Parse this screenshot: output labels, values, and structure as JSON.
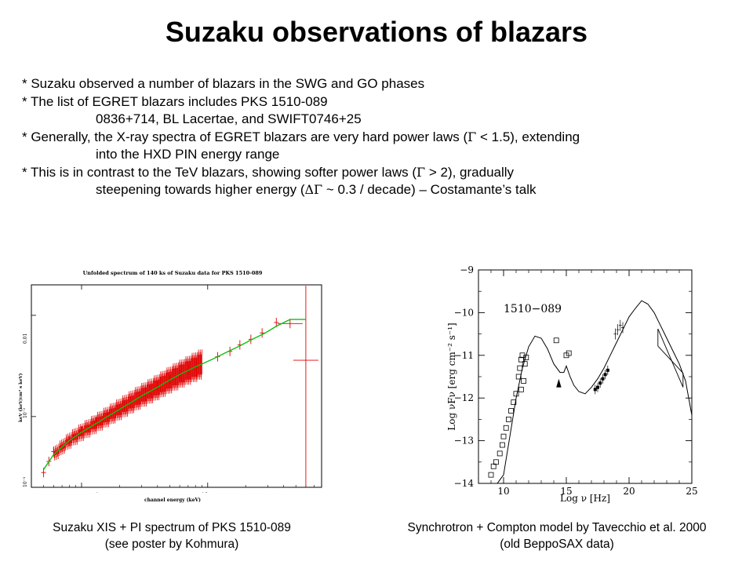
{
  "slide": {
    "title": "Suzaku observations of blazars",
    "bullets": [
      {
        "text": "* Suzaku observed a number of blazars in the SWG and GO phases",
        "indent": false
      },
      {
        "text": "* The list of EGRET blazars includes PKS 1510-089",
        "indent": false
      },
      {
        "text": "0836+714, BL Lacertae, and SWIFT0746+25",
        "indent": true
      },
      {
        "pre": "* Generally, the X-ray spectra of EGRET blazars are very hard power laws (",
        "sym": "Γ",
        "post": " < 1.5), extending",
        "indent": false
      },
      {
        "text": "into the HXD PIN energy range",
        "indent": true
      },
      {
        "pre": "* This is in contrast to the TeV blazars, showing softer power laws (",
        "sym": "Γ",
        "post": " > 2), gradually",
        "indent": false
      },
      {
        "pre": "steepening towards higher energy (",
        "sym": "ΔΓ",
        "post": " ~ 0.3 / decade) – Costamante’s talk",
        "indent": true
      }
    ],
    "captions": {
      "left_line1": "Suzaku XIS + PI spectrum of PKS 1510-089",
      "left_line2": "(see poster by Kohmura)",
      "right_line1": "Synchrotron + Compton model by Tavecchio et al. 2000",
      "right_line2": "(old BeppoSAX data)"
    }
  },
  "chart_data": [
    {
      "type": "scatter",
      "title": "Unfolded spectrum of 140 ks of Suzaku data for PKS 1510-089",
      "xlabel": "channel energy (keV)",
      "ylabel": "keV (keV/cm² s keV)",
      "xscale": "log",
      "yscale": "log",
      "x_tick_labels": [
        "1",
        "10"
      ],
      "y_tick_labels": [
        "10⁻³",
        "10⁻²",
        "0.01"
      ],
      "xlim": [
        0.4,
        80
      ],
      "ylim": [
        0.0002,
        0.02
      ],
      "colors": {
        "data": "#e00000",
        "model": "#10c010"
      },
      "model_x": [
        0.5,
        0.6,
        0.8,
        1,
        1.5,
        2,
        3,
        4,
        5,
        6,
        8,
        9,
        11,
        14,
        18,
        22,
        28,
        35,
        45,
        60
      ],
      "model_y": [
        0.0003,
        0.00042,
        0.00058,
        0.0007,
        0.00095,
        0.00118,
        0.0016,
        0.00195,
        0.0023,
        0.0026,
        0.0031,
        0.0033,
        0.0037,
        0.0043,
        0.005,
        0.0057,
        0.0066,
        0.0078,
        0.0091,
        0.0091
      ],
      "data_points": [
        {
          "x": 0.5,
          "y": 0.00028
        },
        {
          "x": 0.55,
          "y": 0.00036
        },
        {
          "x": 0.6,
          "y": 0.00045
        },
        {
          "x": 0.7,
          "y": 0.0005
        },
        {
          "x": 0.8,
          "y": 0.00057
        },
        {
          "x": 1.0,
          "y": 0.00072
        },
        {
          "x": 1.3,
          "y": 0.0009
        },
        {
          "x": 1.6,
          "y": 0.00105
        },
        {
          "x": 2.0,
          "y": 0.0012
        },
        {
          "x": 2.5,
          "y": 0.0014
        },
        {
          "x": 3.0,
          "y": 0.0016
        },
        {
          "x": 3.5,
          "y": 0.0018
        },
        {
          "x": 4.0,
          "y": 0.002
        },
        {
          "x": 5.0,
          "y": 0.0023
        },
        {
          "x": 6.0,
          "y": 0.0026
        },
        {
          "x": 7.0,
          "y": 0.0029
        },
        {
          "x": 8.0,
          "y": 0.0031
        },
        {
          "x": 12,
          "y": 0.0039
        },
        {
          "x": 15,
          "y": 0.0044
        },
        {
          "x": 18,
          "y": 0.0051
        },
        {
          "x": 22,
          "y": 0.0058
        },
        {
          "x": 27,
          "y": 0.0067
        },
        {
          "x": 35,
          "y": 0.0085
        },
        {
          "x": 45,
          "y": 0.0083
        },
        {
          "x": 60,
          "y": 0.0036
        }
      ]
    },
    {
      "type": "scatter",
      "title": "1510−089",
      "xlabel": "Log ν [Hz]",
      "ylabel": "Log νFν [erg cm⁻² s⁻¹]",
      "x_ticks": [
        10,
        15,
        20,
        25
      ],
      "y_ticks": [
        -9,
        -10,
        -11,
        -12,
        -13,
        -14
      ],
      "xlim": [
        8,
        25
      ],
      "ylim": [
        -14,
        -9
      ],
      "model_x": [
        9.5,
        10,
        10.5,
        11,
        11.5,
        12,
        12.5,
        13,
        13.5,
        14,
        14.5,
        14.8,
        15,
        15.3,
        15.6,
        16,
        16.5,
        17,
        17.5,
        18,
        18.5,
        19,
        19.5,
        20,
        20.5,
        21,
        21.5,
        22,
        22.5,
        23,
        23.5,
        24,
        24.5,
        25
      ],
      "model_y": [
        -14.2,
        -13.8,
        -12.9,
        -12.0,
        -11.3,
        -10.8,
        -10.55,
        -10.6,
        -10.85,
        -11.2,
        -11.4,
        -11.4,
        -11.25,
        -11.5,
        -11.7,
        -11.85,
        -11.9,
        -11.75,
        -11.55,
        -11.3,
        -11.0,
        -10.7,
        -10.4,
        -10.1,
        -9.9,
        -9.72,
        -9.8,
        -10.0,
        -10.3,
        -10.6,
        -10.9,
        -11.2,
        -11.6,
        -12.4
      ],
      "square_points": [
        {
          "x": 9.0,
          "y": -13.8
        },
        {
          "x": 9.2,
          "y": -13.6
        },
        {
          "x": 9.4,
          "y": -13.5
        },
        {
          "x": 9.7,
          "y": -13.3
        },
        {
          "x": 9.9,
          "y": -13.1
        },
        {
          "x": 10.0,
          "y": -12.9
        },
        {
          "x": 10.2,
          "y": -12.7
        },
        {
          "x": 10.4,
          "y": -12.5
        },
        {
          "x": 10.6,
          "y": -12.3
        },
        {
          "x": 10.8,
          "y": -12.1
        },
        {
          "x": 11.0,
          "y": -11.9
        },
        {
          "x": 11.2,
          "y": -11.5
        },
        {
          "x": 11.3,
          "y": -11.3
        },
        {
          "x": 11.4,
          "y": -11.1
        },
        {
          "x": 11.5,
          "y": -11.0
        },
        {
          "x": 11.6,
          "y": -11.6
        },
        {
          "x": 11.7,
          "y": -11.2
        },
        {
          "x": 11.4,
          "y": -11.8
        },
        {
          "x": 11.8,
          "y": -11.05
        },
        {
          "x": 14.2,
          "y": -10.65
        },
        {
          "x": 15.0,
          "y": -11.0
        },
        {
          "x": 15.2,
          "y": -10.95
        }
      ],
      "xray_points": [
        {
          "x": 17.3,
          "y": -11.8
        },
        {
          "x": 17.5,
          "y": -11.75
        },
        {
          "x": 17.7,
          "y": -11.65
        },
        {
          "x": 17.9,
          "y": -11.55
        },
        {
          "x": 18.1,
          "y": -11.45
        },
        {
          "x": 18.3,
          "y": -11.35
        }
      ],
      "gamma_points": [
        {
          "x": 18.9,
          "y": -10.5
        },
        {
          "x": 19.1,
          "y": -10.4
        },
        {
          "x": 19.3,
          "y": -10.3
        },
        {
          "x": 19.5,
          "y": -10.35
        }
      ],
      "bowtie": {
        "x1": 22.3,
        "x2": 24.3,
        "y_center1": -10.6,
        "y_center2": -11.6
      }
    }
  ]
}
